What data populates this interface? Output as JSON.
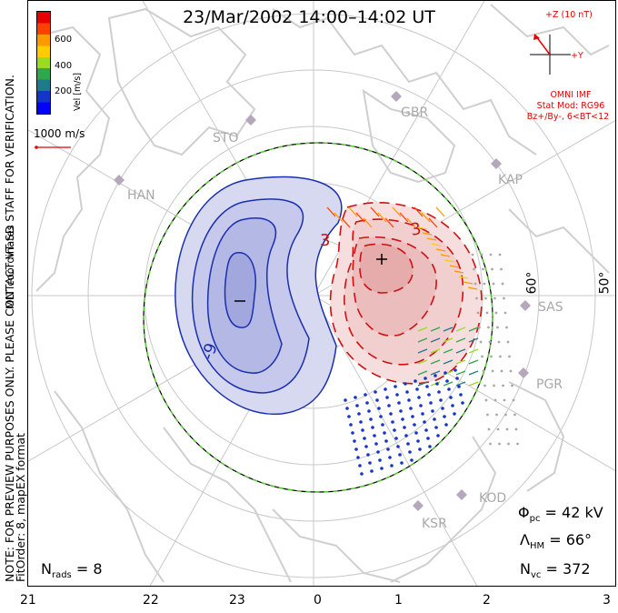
{
  "title": "23/Mar/2002 14:00–14:02 UT",
  "left_notes": {
    "line1": "NOTE: FOR PREVIEW PURPOSES ONLY. PLEASE CONTACT VT-SD STAFF FOR VERIFICATION.",
    "line2": "FitOrder: 8, mapEX format"
  },
  "colorbar": {
    "label": "Vel [m/s]",
    "coords_label": "MLT coordinates",
    "ticks": [
      "600",
      "400",
      "200"
    ],
    "colors": [
      "#e60000",
      "#ff4000",
      "#ff9900",
      "#ffcc00",
      "#99dd22",
      "#2ea84a",
      "#1f7a8c",
      "#1535c8",
      "#0000ff"
    ]
  },
  "scale_vector": {
    "label": "1000 m/s"
  },
  "imf": {
    "axis_z": "+Z (10 nT)",
    "axis_y": "+Y",
    "source": "OMNI IMF",
    "model": "Stat Mod: RG96",
    "condition": "Bz+/By-, 6<BT<12"
  },
  "stations": [
    {
      "code": "GBR"
    },
    {
      "code": "STO"
    },
    {
      "code": "HAN"
    },
    {
      "code": "KAP"
    },
    {
      "code": "SAS"
    },
    {
      "code": "PGR"
    },
    {
      "code": "KOD"
    },
    {
      "code": "KSR"
    }
  ],
  "latitude_labels": [
    "60°",
    "50°"
  ],
  "contour_labels": {
    "pos_left": "3",
    "pos_right": "3",
    "neg": "-9",
    "neg_center": "−",
    "pos_center": "+"
  },
  "stats": {
    "phi_pc": {
      "symbol": "Φ",
      "sub": "pc",
      "value": " = 42 kV"
    },
    "lambda_hm": {
      "symbol": "Λ",
      "sub": "HM",
      "value": " = 66°"
    },
    "n_vc": {
      "symbol": "N",
      "sub": "vc",
      "value": " = 372"
    },
    "n_rads": {
      "symbol": "N",
      "sub": "rads",
      "value": " = 8"
    }
  },
  "mlt_ticks": [
    "21",
    "22",
    "23",
    "0",
    "1",
    "2",
    "3"
  ],
  "colors": {
    "negative_cell": "#1a2fb0",
    "positive_cell": "#d01010",
    "hmb": "#000000",
    "coast": "#cfcfcf",
    "grid": "#c8c8c8"
  }
}
